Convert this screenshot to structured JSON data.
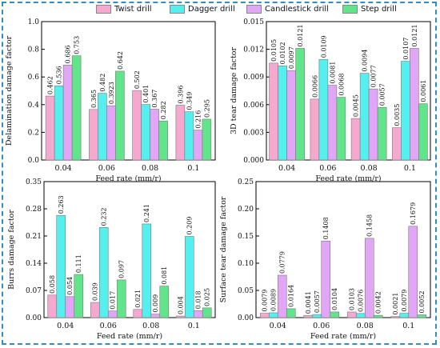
{
  "legend": [
    {
      "name": "Twist drill",
      "color": "#f6a9cf"
    },
    {
      "name": "Dagger drill",
      "color": "#55efef"
    },
    {
      "name": "Candlestick drill",
      "color": "#e1a6f5"
    },
    {
      "name": "Step drill",
      "color": "#62e48a"
    }
  ],
  "chart_data": [
    {
      "type": "bar",
      "title": "",
      "xlabel": "Feed rate (mm/r)",
      "ylabel": "Delamination damage factor",
      "categories": [
        "0.04",
        "0.06",
        "0.08",
        "0.1"
      ],
      "ylim": [
        0,
        1.0
      ],
      "yticks": [
        "0.0",
        "0.2",
        "0.4",
        "0.6",
        "0.8",
        "1.0"
      ],
      "series": [
        {
          "name": "Twist drill",
          "values": [
            0.462,
            0.365,
            0.502,
            0.396
          ],
          "labels": [
            "0.462",
            "0.365",
            "0.502",
            "0.396"
          ]
        },
        {
          "name": "Dagger drill",
          "values": [
            0.536,
            0.482,
            0.401,
            0.349
          ],
          "labels": [
            "0.536",
            "0.482",
            "0.401",
            "0.349"
          ]
        },
        {
          "name": "Candlestick drill",
          "values": [
            0.686,
            0.3923,
            0.367,
            0.216
          ],
          "labels": [
            "0.686",
            "0.3923",
            "0.367",
            "0.216"
          ]
        },
        {
          "name": "Step drill",
          "values": [
            0.753,
            0.642,
            0.282,
            0.295
          ],
          "labels": [
            "0.753",
            "0.642",
            "0.282",
            "0.295"
          ]
        }
      ]
    },
    {
      "type": "bar",
      "title": "",
      "xlabel": "Feed rate (mm/r)",
      "ylabel": "3D tear damage factor",
      "categories": [
        "0.04",
        "0.06",
        "0.08",
        "0.1"
      ],
      "ylim": [
        0,
        0.015
      ],
      "yticks": [
        "0.000",
        "0.003",
        "0.006",
        "0.009",
        "0.012",
        "0.015"
      ],
      "series": [
        {
          "name": "Twist drill",
          "values": [
            0.0105,
            0.0066,
            0.0045,
            0.0035
          ],
          "labels": [
            "0.0105",
            "0.0066",
            "0.0045",
            "0.0035"
          ]
        },
        {
          "name": "Dagger drill",
          "values": [
            0.0102,
            0.0109,
            0.0094,
            0.0107
          ],
          "labels": [
            "0.0102",
            "0.0109",
            "0.0094",
            "0.0107"
          ]
        },
        {
          "name": "Candlestick drill",
          "values": [
            0.0097,
            0.0081,
            0.0077,
            0.0121
          ],
          "labels": [
            "0.0097",
            "0.0081",
            "0.0077",
            "0.0121"
          ]
        },
        {
          "name": "Step drill",
          "values": [
            0.0121,
            0.0068,
            0.0057,
            0.0061
          ],
          "labels": [
            "0.0121",
            "0.0068",
            "0.0057",
            "0.0061"
          ]
        }
      ]
    },
    {
      "type": "bar",
      "title": "",
      "xlabel": "Feed rate (mm/r)",
      "ylabel": "Burrs damage factor",
      "categories": [
        "0.04",
        "0.06",
        "0.08",
        "0.1"
      ],
      "ylim": [
        0,
        0.35
      ],
      "yticks": [
        "0.00",
        "0.07",
        "0.14",
        "0.21",
        "0.28",
        "0.35"
      ],
      "series": [
        {
          "name": "Twist drill",
          "values": [
            0.058,
            0.039,
            0.021,
            0.004
          ],
          "labels": [
            "0.058",
            "0.039",
            "0.021",
            "0.004"
          ]
        },
        {
          "name": "Dagger drill",
          "values": [
            0.263,
            0.232,
            0.241,
            0.209
          ],
          "labels": [
            "0.263",
            "0.232",
            "0.241",
            "0.209"
          ]
        },
        {
          "name": "Candlestick drill",
          "values": [
            0.054,
            0.017,
            0.009,
            0.018
          ],
          "labels": [
            "0.054",
            "0.017",
            "0.009",
            "0.018"
          ]
        },
        {
          "name": "Step drill",
          "values": [
            0.111,
            0.097,
            0.081,
            0.025
          ],
          "labels": [
            "0.111",
            "0.097",
            "0.081",
            "0.025"
          ]
        }
      ]
    },
    {
      "type": "bar",
      "title": "",
      "xlabel": "Feed rate (mm/r)",
      "ylabel": "Surface tear damage factor",
      "categories": [
        "0.04",
        "0.06",
        "0.08",
        "0.1"
      ],
      "ylim": [
        0,
        0.25
      ],
      "yticks": [
        "0.00",
        "0.05",
        "0.10",
        "0.15",
        "0.20",
        "0.25"
      ],
      "series": [
        {
          "name": "Twist drill",
          "values": [
            0.0079,
            0.0041,
            0.0103,
            0.0021
          ],
          "labels": [
            "0.0079",
            "0.0041",
            "0.0103",
            "0.0021"
          ]
        },
        {
          "name": "Dagger drill",
          "values": [
            0.0089,
            0.0057,
            0.0076,
            0.0079
          ],
          "labels": [
            "0.0089",
            "0.0057",
            "0.0076",
            "0.0079"
          ]
        },
        {
          "name": "Candlestick drill",
          "values": [
            0.0779,
            0.1408,
            0.1458,
            0.1679
          ],
          "labels": [
            "0.0779",
            "0.1408",
            "0.1458",
            "0.1679"
          ]
        },
        {
          "name": "Step drill",
          "values": [
            0.0164,
            0.0104,
            0.0042,
            0.0052
          ],
          "labels": [
            "0.0164",
            "0.0104",
            "0.0042",
            "0.0052"
          ]
        }
      ]
    }
  ]
}
